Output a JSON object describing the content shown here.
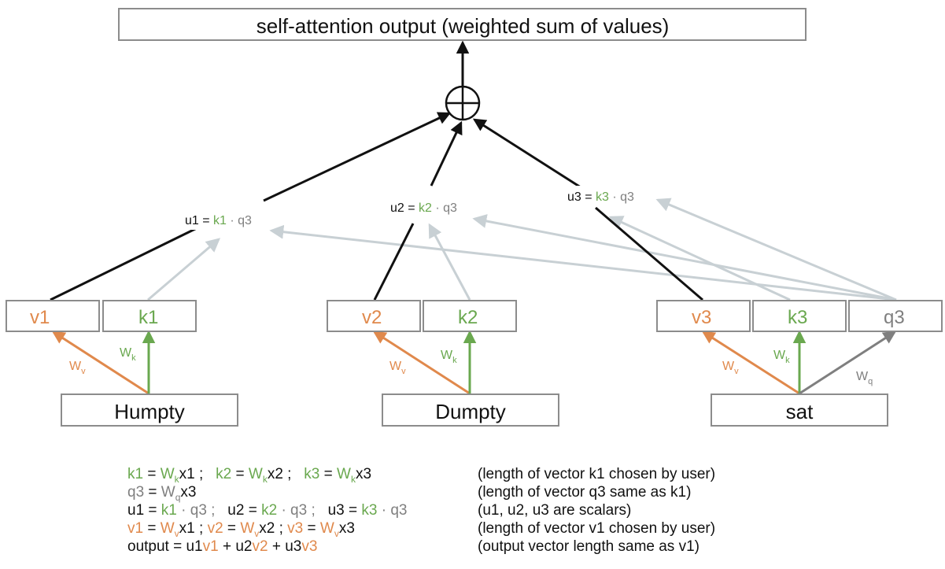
{
  "title": "self-attention output (weighted sum of values)",
  "sum_symbol": "⊕",
  "colors": {
    "value": "#e0894c",
    "key": "#6aa84f",
    "query": "#7f7f7f",
    "connector_light": "#c8d0d4",
    "connector_dark": "#111111",
    "box_border": "#8c8c8c"
  },
  "words": [
    "Humpty",
    "Dumpty",
    "sat"
  ],
  "vectors": {
    "v1": "v1",
    "k1": "k1",
    "v2": "v2",
    "k2": "k2",
    "v3": "v3",
    "k3": "k3",
    "q3": "q3"
  },
  "weights": {
    "wv": "W",
    "wv_sub": "v",
    "wk": "W",
    "wk_sub": "k",
    "wq": "W",
    "wq_sub": "q"
  },
  "scores": [
    {
      "left": "u1 = ",
      "key": "k1",
      "right": " · q3"
    },
    {
      "left": "u2 = ",
      "key": "k2",
      "right": " · q3"
    },
    {
      "left": "u3 = ",
      "key": "k3",
      "right": " · q3"
    }
  ],
  "equations": [
    {
      "formula": [
        {
          "t": "k1",
          "c": "gr"
        },
        {
          "t": " = ",
          "c": "bk"
        },
        {
          "t": "W",
          "c": "gr"
        },
        {
          "t": "k",
          "c": "gr",
          "sub": true
        },
        {
          "t": "x1 ;   ",
          "c": "bk"
        },
        {
          "t": "k2",
          "c": "gr"
        },
        {
          "t": " = ",
          "c": "bk"
        },
        {
          "t": "W",
          "c": "gr"
        },
        {
          "t": "k",
          "c": "gr",
          "sub": true
        },
        {
          "t": "x2 ;   ",
          "c": "bk"
        },
        {
          "t": "k3",
          "c": "gr"
        },
        {
          "t": " = ",
          "c": "bk"
        },
        {
          "t": "W",
          "c": "gr"
        },
        {
          "t": "k",
          "c": "gr",
          "sub": true
        },
        {
          "t": "x3",
          "c": "bk"
        }
      ],
      "note": "(length of vector k1 chosen by user)"
    },
    {
      "formula": [
        {
          "t": "q3",
          "c": "gy"
        },
        {
          "t": " = ",
          "c": "bk"
        },
        {
          "t": "W",
          "c": "gy"
        },
        {
          "t": "q",
          "c": "gy",
          "sub": true
        },
        {
          "t": "x3",
          "c": "bk"
        }
      ],
      "note": "(length of vector q3 same as k1)"
    },
    {
      "formula": [
        {
          "t": "u1 = ",
          "c": "bk"
        },
        {
          "t": "k1",
          "c": "gr"
        },
        {
          "t": " · q3 ;   ",
          "c": "gy"
        },
        {
          "t": "u2 = ",
          "c": "bk"
        },
        {
          "t": "k2",
          "c": "gr"
        },
        {
          "t": " · q3 ;   ",
          "c": "gy"
        },
        {
          "t": "u3 = ",
          "c": "bk"
        },
        {
          "t": "k3",
          "c": "gr"
        },
        {
          "t": " · q3",
          "c": "gy"
        }
      ],
      "note": "(u1, u2, u3 are scalars)"
    },
    {
      "formula": [
        {
          "t": "v1",
          "c": "or"
        },
        {
          "t": " = ",
          "c": "bk"
        },
        {
          "t": "W",
          "c": "or"
        },
        {
          "t": "v",
          "c": "or",
          "sub": true
        },
        {
          "t": "x1 ; ",
          "c": "bk"
        },
        {
          "t": "v2",
          "c": "or"
        },
        {
          "t": " = ",
          "c": "bk"
        },
        {
          "t": "W",
          "c": "or"
        },
        {
          "t": "v",
          "c": "or",
          "sub": true
        },
        {
          "t": "x2 ; ",
          "c": "bk"
        },
        {
          "t": "v3",
          "c": "or"
        },
        {
          "t": " = ",
          "c": "bk"
        },
        {
          "t": "W",
          "c": "or"
        },
        {
          "t": "v",
          "c": "or",
          "sub": true
        },
        {
          "t": "x3",
          "c": "bk"
        }
      ],
      "note": "(length of vector v1 chosen by user)"
    },
    {
      "formula": [
        {
          "t": "output = u1",
          "c": "bk"
        },
        {
          "t": "v1",
          "c": "or"
        },
        {
          "t": " + u2",
          "c": "bk"
        },
        {
          "t": "v2",
          "c": "or"
        },
        {
          "t": " + u3",
          "c": "bk"
        },
        {
          "t": "v3",
          "c": "or"
        }
      ],
      "note": "(output vector length same as v1)"
    }
  ]
}
